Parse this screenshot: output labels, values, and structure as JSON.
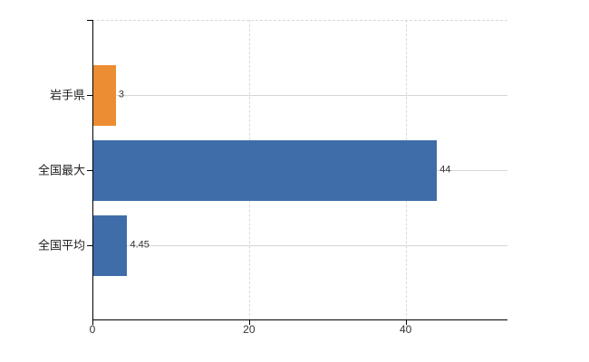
{
  "chart_data": {
    "type": "bar",
    "orientation": "horizontal",
    "title": "",
    "xlabel": "",
    "ylabel": "",
    "categories": [
      "岩手県",
      "全国最大",
      "全国平均"
    ],
    "values": [
      3,
      44,
      4.45
    ],
    "value_labels": [
      "3",
      "44",
      "4.45"
    ],
    "bar_colors": [
      "#EC8D33",
      "#3E6DA9",
      "#3E6DA9"
    ],
    "xlim": [
      0,
      53
    ],
    "xticks": [
      0,
      20,
      40
    ],
    "xtick_labels": [
      "0",
      "20",
      "40"
    ],
    "legend": "none",
    "grid": {
      "vertical": "dashed",
      "horizontal": "solid-at-category-centers",
      "top_border": "dashed"
    },
    "colors": {
      "axis": "#000000",
      "grid_solid": "#D6D6D6",
      "grid_dashed": "#D9D9D9",
      "text": "#333333",
      "background": "#FFFFFF"
    }
  }
}
